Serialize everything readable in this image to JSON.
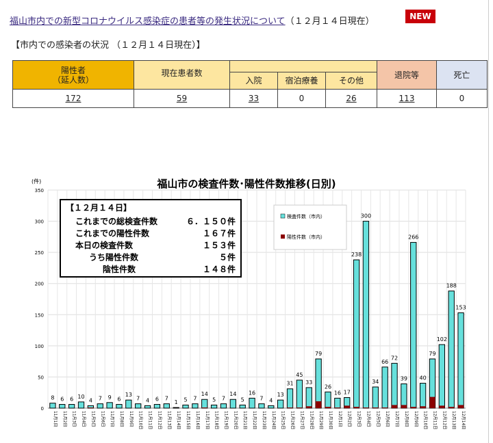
{
  "header": {
    "title_link": "福山市内での新型コロナウイルス感染症の患者等の発生状況について",
    "title_date": "（１２月１４日現在）",
    "new_badge": "NEW",
    "subtitle": "【市内での感染者の状況 （１２月１４日現在）】"
  },
  "table": {
    "h_positive": "陽性者",
    "h_positive_sub": "（延人数）",
    "h_current": "現在患者数",
    "h_hospital": "入院",
    "h_hotel": "宿泊療養",
    "h_other": "その他",
    "h_discharged": "退院等",
    "h_death": "死亡",
    "v_positive": "172",
    "v_current": "59",
    "v_hospital": "33",
    "v_hotel": "0",
    "v_other": "26",
    "v_discharged": "113",
    "v_death": "0"
  },
  "colors": {
    "tests": "#66e0dc",
    "positives": "#8b0000",
    "h1": "#f0b400",
    "h2": "#fde6a0",
    "h3": "#f4c5a8",
    "h4": "#dce3f2"
  },
  "summary": {
    "heading": "【１２月１４日】",
    "rows": [
      {
        "label": "これまでの総検査件数",
        "value": "６．１５０件"
      },
      {
        "label": "これまでの陽性件数",
        "value": "１６７件"
      },
      {
        "label": "本日の検査件数",
        "value": "１５３件"
      },
      {
        "label": "うち陽性件数",
        "value": "５件"
      },
      {
        "label": "陰性件数",
        "value": "１４８件"
      }
    ]
  },
  "chart_data": {
    "type": "bar",
    "title": "福山市の検査件数･陽性件数推移(日別)",
    "ylabel": "(件)",
    "ylim": [
      0,
      350
    ],
    "yticks": [
      0,
      50,
      100,
      150,
      200,
      250,
      300,
      350
    ],
    "legend_position": "top-right",
    "categories": [
      "11月1日",
      "11月2日",
      "11月3日",
      "11月4日",
      "11月5日",
      "11月6日",
      "11月7日",
      "11月8日",
      "11月9日",
      "11月10日",
      "11月11日",
      "11月12日",
      "11月13日",
      "11月14日",
      "11月15日",
      "11月16日",
      "11月17日",
      "11月18日",
      "11月19日",
      "11月20日",
      "11月21日",
      "11月22日",
      "11月23日",
      "11月24日",
      "11月25日",
      "11月26日",
      "11月27日",
      "11月28日",
      "11月29日",
      "11月30日",
      "12月1日",
      "12月2日",
      "12月3日",
      "12月4日",
      "12月5日",
      "12月6日",
      "12月7日",
      "12月8日",
      "12月9日",
      "12月10日",
      "12月11日",
      "12月12日",
      "12月13日",
      "12月14日"
    ],
    "series": [
      {
        "name": "検査件数（市内）",
        "values": [
          8,
          6,
          6,
          10,
          4,
          7,
          9,
          6,
          13,
          7,
          4,
          6,
          7,
          1,
          5,
          7,
          14,
          5,
          7,
          14,
          5,
          16,
          7,
          4,
          13,
          31,
          45,
          33,
          79,
          26,
          16,
          17,
          238,
          300,
          34,
          66,
          72,
          39,
          266,
          40,
          79,
          102,
          188,
          153
        ]
      },
      {
        "name": "陽性件数（市内）",
        "values": [
          0,
          0,
          0,
          0,
          1,
          0,
          0,
          0,
          0,
          0,
          0,
          0,
          0,
          0,
          0,
          0,
          1,
          0,
          0,
          0,
          0,
          0,
          0,
          0,
          0,
          1,
          1,
          3,
          11,
          2,
          1,
          4,
          2,
          1,
          1,
          1,
          5,
          5,
          2,
          3,
          18,
          4,
          2,
          5
        ]
      }
    ]
  }
}
